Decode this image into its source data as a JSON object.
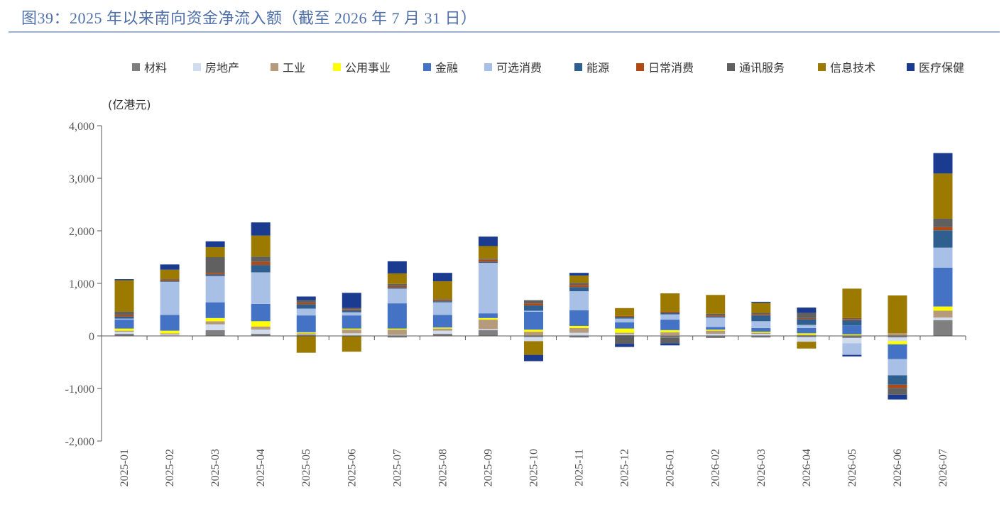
{
  "title": "图39：2025 年以来南向资金净流入额（截至 2026 年 7 月 31 日）",
  "chart_data": {
    "type": "bar",
    "stacked": true,
    "ylabel": "(亿港元)",
    "ylim": [
      -2000,
      4000
    ],
    "yticks": [
      4000,
      3000,
      2000,
      1000,
      0,
      -1000,
      -2000
    ],
    "ytick_labels": [
      "4,000",
      "3,000",
      "2,000",
      "1,000",
      "0",
      "-1,000",
      "-2,000"
    ],
    "negative_tick_color": "#e8373d",
    "grid": false,
    "legend_position": "top",
    "categories": [
      "2025-01",
      "2025-02",
      "2025-03",
      "2025-04",
      "2025-05",
      "2025-06",
      "2025-07",
      "2025-08",
      "2025-09",
      "2025-10",
      "2025-11",
      "2025-12",
      "2026-01",
      "2026-02",
      "2026-03",
      "2026-04",
      "2026-05",
      "2026-06",
      "2026-07"
    ],
    "series": [
      {
        "name": "材料",
        "color": "#7f7f7f",
        "values": [
          40,
          10,
          110,
          40,
          20,
          10,
          -30,
          40,
          110,
          -20,
          -30,
          20,
          -40,
          -40,
          -30,
          -20,
          -40,
          -30,
          300
        ]
      },
      {
        "name": "房地产",
        "color": "#d2dcef",
        "values": [
          40,
          20,
          110,
          80,
          10,
          40,
          20,
          60,
          20,
          -80,
          60,
          20,
          10,
          40,
          40,
          -90,
          -100,
          -70,
          50
        ]
      },
      {
        "name": "工业",
        "color": "#b59a7b",
        "values": [
          20,
          20,
          60,
          60,
          20,
          70,
          100,
          40,
          180,
          80,
          90,
          20,
          60,
          60,
          20,
          20,
          10,
          50,
          130
        ]
      },
      {
        "name": "公用事业",
        "color": "#ffff00",
        "values": [
          40,
          50,
          60,
          100,
          20,
          20,
          20,
          20,
          30,
          40,
          40,
          80,
          40,
          20,
          20,
          30,
          20,
          -60,
          80
        ]
      },
      {
        "name": "金融",
        "color": "#4472c4",
        "values": [
          170,
          300,
          300,
          330,
          320,
          250,
          480,
          240,
          90,
          340,
          300,
          120,
          200,
          50,
          70,
          100,
          170,
          -280,
          740
        ]
      },
      {
        "name": "可选消费",
        "color": "#a9c0e6",
        "values": [
          20,
          630,
          500,
          600,
          130,
          60,
          280,
          240,
          960,
          20,
          360,
          70,
          100,
          180,
          130,
          60,
          -220,
          -310,
          380
        ]
      },
      {
        "name": "能源",
        "color": "#2f5f8f",
        "values": [
          40,
          10,
          30,
          140,
          80,
          40,
          20,
          20,
          20,
          100,
          80,
          30,
          30,
          20,
          110,
          110,
          100,
          -180,
          330
        ]
      },
      {
        "name": "日常消费",
        "color": "#b04a12",
        "values": [
          30,
          20,
          30,
          60,
          30,
          20,
          30,
          20,
          40,
          40,
          40,
          20,
          20,
          20,
          20,
          20,
          20,
          -60,
          60
        ]
      },
      {
        "name": "通讯服务",
        "color": "#606060",
        "values": [
          60,
          20,
          300,
          100,
          50,
          20,
          40,
          20,
          20,
          60,
          40,
          -150,
          -100,
          30,
          30,
          100,
          20,
          -130,
          160
        ]
      },
      {
        "name": "信息技术",
        "color": "#9c7a00",
        "values": [
          600,
          180,
          190,
          400,
          -320,
          -300,
          200,
          340,
          240,
          -260,
          140,
          150,
          350,
          360,
          190,
          -130,
          560,
          720,
          860
        ]
      },
      {
        "name": "医疗保健",
        "color": "#1a3b8f",
        "values": [
          20,
          100,
          110,
          250,
          70,
          290,
          230,
          160,
          180,
          -120,
          50,
          -60,
          -40,
          0,
          20,
          100,
          -30,
          -90,
          390
        ]
      }
    ]
  }
}
